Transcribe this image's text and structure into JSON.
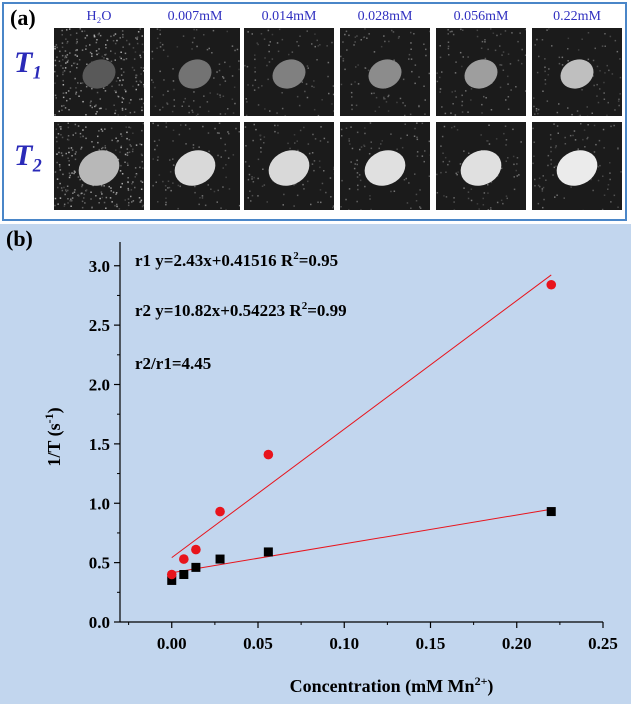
{
  "panel_a": {
    "label": "(a)",
    "concentrations": [
      "H₂O",
      "0.007mM",
      "0.014mM",
      "0.028mM",
      "0.056mM",
      "0.22mM"
    ],
    "rows": [
      {
        "label": "T₁",
        "sub": "1"
      },
      {
        "label": "T₂",
        "sub": "2"
      }
    ],
    "t1_brightness": [
      0.35,
      0.45,
      0.5,
      0.55,
      0.62,
      0.75
    ],
    "t2_brightness": [
      0.72,
      0.85,
      0.85,
      0.88,
      0.88,
      0.92
    ]
  },
  "chart_data": {
    "type": "scatter",
    "panel_label": "(b)",
    "xlabel": "Concentration (mM Mn",
    "xlabel_sup": "2+",
    "xlabel_end": ")",
    "ylabel": "1/T (s",
    "ylabel_sup": "-1",
    "ylabel_end": ")",
    "xlim": [
      -0.03,
      0.25
    ],
    "ylim": [
      0.0,
      3.2
    ],
    "xticks": [
      0.0,
      0.05,
      0.1,
      0.15,
      0.2,
      0.25
    ],
    "xtick_labels": [
      "0.00",
      "0.05",
      "0.10",
      "0.15",
      "0.20",
      "0.25"
    ],
    "yticks": [
      0.0,
      0.5,
      1.0,
      1.5,
      2.0,
      2.5,
      3.0
    ],
    "ytick_labels": [
      "0.0",
      "0.5",
      "1.0",
      "1.5",
      "2.0",
      "2.5",
      "3.0"
    ],
    "series": [
      {
        "name": "r1",
        "marker": "square",
        "color": "#000000",
        "x": [
          0.0,
          0.007,
          0.014,
          0.028,
          0.056,
          0.22
        ],
        "y": [
          0.35,
          0.4,
          0.46,
          0.53,
          0.59,
          0.93
        ],
        "fit": {
          "slope": 2.43,
          "intercept": 0.41516
        }
      },
      {
        "name": "r2",
        "marker": "circle",
        "color": "#e8141c",
        "x": [
          0.0,
          0.007,
          0.014,
          0.028,
          0.056,
          0.22
        ],
        "y": [
          0.4,
          0.53,
          0.61,
          0.93,
          1.41,
          2.84
        ],
        "fit": {
          "slope": 10.82,
          "intercept": 0.54223
        }
      }
    ],
    "fit_range": [
      0.0,
      0.22
    ],
    "fit_color": "#e8141c",
    "annotations": [
      {
        "pre": "r1 y=2.43x+0.41516   R",
        "sup": "2",
        "post": "=0.95"
      },
      {
        "pre": "r2 y=10.82x+0.54223 R",
        "sup": "2",
        "post": "=0.99"
      },
      {
        "pre": "r2/r1=4.45",
        "sup": "",
        "post": ""
      }
    ],
    "background": "#c2d6ee"
  }
}
